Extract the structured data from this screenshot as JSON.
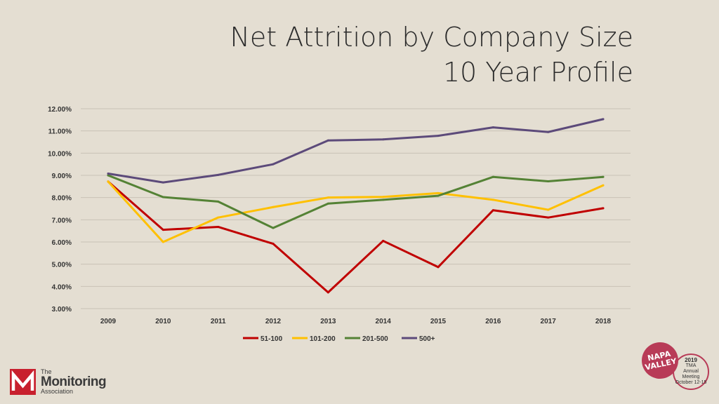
{
  "title": {
    "line1": "Net Attrition by Company Size",
    "line2": "10 Year Profile"
  },
  "chart_data": {
    "type": "line",
    "title": "Net Attrition by Company Size 10 Year Profile",
    "xlabel": "",
    "ylabel": "",
    "categories": [
      "2009",
      "2010",
      "2011",
      "2012",
      "2013",
      "2014",
      "2015",
      "2016",
      "2017",
      "2018"
    ],
    "ylim": [
      0.03,
      0.12
    ],
    "y_ticks": [
      "3.00%",
      "4.00%",
      "5.00%",
      "6.00%",
      "7.00%",
      "8.00%",
      "9.00%",
      "10.00%",
      "11.00%",
      "12.00%"
    ],
    "grid": true,
    "legend_position": "bottom",
    "series": [
      {
        "name": "51-100",
        "color": "#c00000",
        "values": [
          0.0872,
          0.0655,
          0.0668,
          0.0592,
          0.0373,
          0.0605,
          0.0487,
          0.0743,
          0.071,
          0.0752
        ]
      },
      {
        "name": "101-200",
        "color": "#ffc000",
        "values": [
          0.0872,
          0.06,
          0.071,
          0.0757,
          0.08,
          0.0803,
          0.082,
          0.079,
          0.0745,
          0.0855
        ]
      },
      {
        "name": "201-500",
        "color": "#548235",
        "values": [
          0.09,
          0.0802,
          0.0782,
          0.0663,
          0.0773,
          0.079,
          0.0808,
          0.0893,
          0.0873,
          0.0893
        ]
      },
      {
        "name": "500+",
        "color": "#5c4a7a",
        "values": [
          0.0908,
          0.0868,
          0.0902,
          0.095,
          0.1057,
          0.1062,
          0.1078,
          0.1116,
          0.1095,
          0.1153
        ]
      }
    ]
  },
  "logo": {
    "line1": "The",
    "line2": "Monitoring",
    "line3": "Association",
    "mark": "M",
    "accent": "#c8202e"
  },
  "badge": {
    "napa1": "NAPA",
    "napa2": "VALLEY",
    "year": "2019",
    "org": "TMA",
    "l1": "Annual",
    "l2": "Meeting",
    "dates": "October 12-15"
  }
}
